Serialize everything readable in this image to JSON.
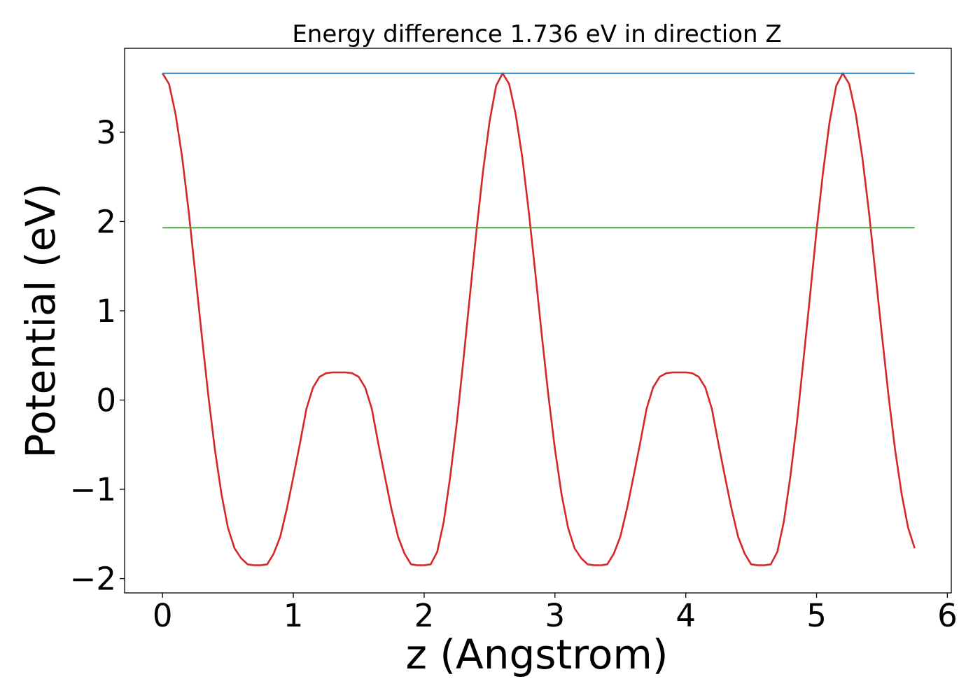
{
  "chart_data": {
    "type": "line",
    "title": "Energy difference 1.736 eV in direction Z",
    "xlabel": "z (Angstrom)",
    "ylabel": "Potential (eV)",
    "xlim": [
      -0.29,
      6.03
    ],
    "ylim": [
      -2.16,
      3.94
    ],
    "x_ticks": [
      0,
      1,
      2,
      3,
      4,
      5,
      6
    ],
    "x_tick_labels": [
      "0",
      "1",
      "2",
      "3",
      "4",
      "5",
      "6"
    ],
    "y_ticks": [
      -2,
      -1,
      0,
      1,
      2,
      3
    ],
    "y_tick_labels": [
      "−2",
      "−1",
      "0",
      "1",
      "2",
      "3"
    ],
    "grid": false,
    "series": [
      {
        "color": "#d62728",
        "x": [
          0,
          0.05,
          0.1,
          0.15,
          0.2,
          0.25,
          0.3,
          0.35,
          0.4,
          0.45,
          0.5,
          0.55,
          0.6,
          0.65,
          0.7,
          0.75,
          0.8,
          0.85,
          0.9,
          0.95,
          1.0,
          1.05,
          1.1,
          1.15,
          1.2,
          1.25,
          1.3,
          1.35,
          1.4,
          1.45,
          1.5,
          1.55,
          1.6,
          1.65,
          1.7,
          1.75,
          1.8,
          1.85,
          1.9,
          1.95,
          2.0,
          2.05,
          2.1,
          2.15,
          2.2,
          2.25,
          2.3,
          2.35,
          2.4,
          2.45,
          2.5,
          2.55,
          2.6,
          2.65,
          2.7,
          2.75,
          2.8,
          2.85,
          2.9,
          2.95,
          3.0,
          3.05,
          3.1,
          3.15,
          3.2,
          3.25,
          3.3,
          3.35,
          3.4,
          3.45,
          3.5,
          3.55,
          3.6,
          3.65,
          3.7,
          3.75,
          3.8,
          3.85,
          3.9,
          3.95,
          4.0,
          4.05,
          4.1,
          4.15,
          4.2,
          4.25,
          4.3,
          4.35,
          4.4,
          4.45,
          4.5,
          4.55,
          4.6,
          4.65,
          4.7,
          4.75,
          4.8,
          4.85,
          4.9,
          4.95,
          5.0,
          5.05,
          5.1,
          5.15,
          5.2,
          5.25,
          5.3,
          5.35,
          5.4,
          5.45,
          5.5,
          5.55,
          5.6,
          5.65,
          5.7,
          5.75
        ],
        "values": [
          3.66,
          3.54,
          3.2,
          2.72,
          2.11,
          1.42,
          0.72,
          0.05,
          -0.55,
          -1.05,
          -1.43,
          -1.66,
          -1.77,
          -1.84,
          -1.85,
          -1.85,
          -1.84,
          -1.72,
          -1.53,
          -1.22,
          -0.86,
          -0.49,
          -0.1,
          0.14,
          0.26,
          0.3,
          0.31,
          0.31,
          0.31,
          0.3,
          0.26,
          0.14,
          -0.1,
          -0.49,
          -0.86,
          -1.22,
          -1.53,
          -1.72,
          -1.84,
          -1.85,
          -1.85,
          -1.84,
          -1.7,
          -1.36,
          -0.85,
          -0.25,
          0.45,
          1.17,
          1.9,
          2.56,
          3.12,
          3.52,
          3.66,
          3.54,
          3.2,
          2.72,
          2.11,
          1.42,
          0.72,
          0.05,
          -0.55,
          -1.05,
          -1.43,
          -1.66,
          -1.77,
          -1.84,
          -1.85,
          -1.85,
          -1.84,
          -1.72,
          -1.53,
          -1.22,
          -0.86,
          -0.49,
          -0.1,
          0.14,
          0.26,
          0.3,
          0.31,
          0.31,
          0.31,
          0.3,
          0.26,
          0.14,
          -0.1,
          -0.49,
          -0.86,
          -1.22,
          -1.53,
          -1.72,
          -1.84,
          -1.85,
          -1.85,
          -1.84,
          -1.7,
          -1.36,
          -0.85,
          -0.25,
          0.45,
          1.17,
          1.9,
          2.56,
          3.12,
          3.52,
          3.66,
          3.54,
          3.2,
          2.72,
          2.11,
          1.42,
          0.72,
          0.05,
          -0.55,
          -1.05,
          -1.43,
          -1.66
        ]
      },
      {
        "color": "#1f77b4",
        "x": [
          0,
          5.75
        ],
        "values": [
          3.66,
          3.66
        ]
      },
      {
        "color": "#2ca02c",
        "x": [
          0,
          5.75
        ],
        "values": [
          1.93,
          1.93
        ]
      }
    ]
  }
}
